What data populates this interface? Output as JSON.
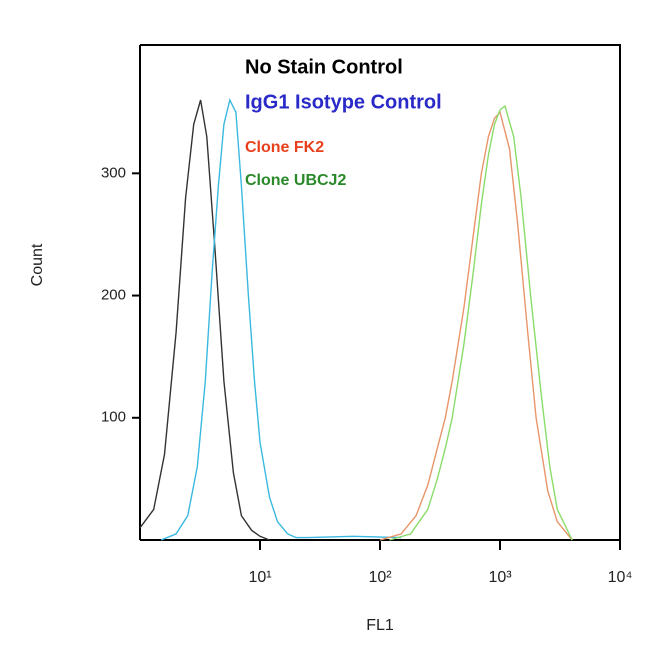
{
  "chart_data": {
    "type": "line",
    "x_label": "FL1",
    "y_label": "Count",
    "xscale": "log",
    "xlim": [
      1,
      10000
    ],
    "ylim": [
      0,
      405
    ],
    "xticks": [
      {
        "value": 10,
        "label": "10¹"
      },
      {
        "value": 100,
        "label": "10²"
      },
      {
        "value": 1000,
        "label": "10³"
      },
      {
        "value": 10000,
        "label": "10⁴"
      }
    ],
    "yticks": [
      100,
      200,
      300
    ],
    "grid": false,
    "series": [
      {
        "name": "No Stain Control",
        "color": "#333333",
        "legend_color": "#000000",
        "x": [
          1.0,
          1.3,
          1.6,
          2.0,
          2.4,
          2.8,
          3.2,
          3.6,
          4.2,
          5.0,
          6.0,
          7.0,
          8.5,
          10,
          12
        ],
        "values": [
          10,
          25,
          70,
          170,
          280,
          340,
          360,
          330,
          240,
          130,
          55,
          20,
          8,
          3,
          0
        ]
      },
      {
        "name": "IgG1 Isotype Control",
        "color": "#3ab8e0",
        "legend_color": "#2a2ac8",
        "x": [
          1.5,
          2,
          2.5,
          3,
          3.5,
          4,
          4.5,
          5,
          5.6,
          6.3,
          7,
          8,
          9,
          10,
          12,
          14,
          17,
          20,
          25,
          60,
          150
        ],
        "values": [
          0,
          5,
          20,
          60,
          130,
          220,
          290,
          340,
          360,
          350,
          290,
          200,
          130,
          80,
          35,
          15,
          5,
          2,
          2,
          3,
          2
        ]
      },
      {
        "name": "Clone FK2",
        "color": "#e8956a",
        "legend_color": "#e8401c",
        "x": [
          100,
          150,
          200,
          250,
          300,
          350,
          400,
          500,
          600,
          700,
          800,
          900,
          1000,
          1200,
          1400,
          1700,
          2000,
          2500,
          3000,
          4000
        ],
        "values": [
          0,
          5,
          20,
          45,
          75,
          100,
          130,
          190,
          250,
          300,
          330,
          345,
          350,
          320,
          260,
          170,
          100,
          40,
          15,
          0
        ]
      },
      {
        "name": "Clone UBCJ2",
        "color": "#8adc6a",
        "legend_color": "#2a8a2a",
        "x": [
          120,
          180,
          250,
          300,
          350,
          400,
          500,
          600,
          700,
          800,
          900,
          1000,
          1100,
          1300,
          1500,
          1800,
          2200,
          2600,
          3000,
          4000
        ],
        "values": [
          0,
          5,
          25,
          50,
          75,
          100,
          160,
          220,
          275,
          315,
          340,
          352,
          355,
          330,
          280,
          200,
          120,
          60,
          25,
          0
        ]
      }
    ]
  }
}
